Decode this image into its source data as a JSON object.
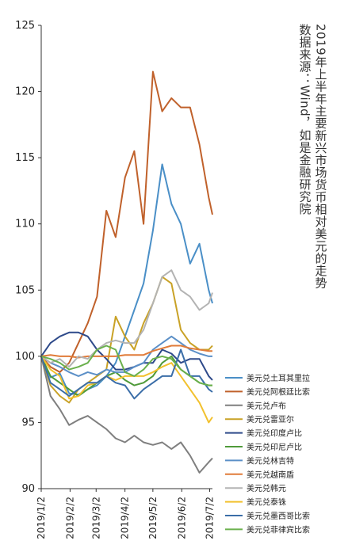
{
  "title": "2019年上半年主要新兴市场货币相对美元的走势",
  "source": "数据来源：Wind，如是金融研究院",
  "chart_data": {
    "type": "line",
    "title": "2019年上半年主要新兴市场货币相对美元的走势",
    "xlabel": "",
    "ylabel": "",
    "ylim": [
      90,
      125
    ],
    "yticks": [
      90,
      95,
      100,
      105,
      110,
      115,
      120,
      125
    ],
    "x_range": [
      "2019/1/2",
      "2019/7/5"
    ],
    "xticks": [
      "2019/1/2",
      "2019/2/2",
      "2019/3/2",
      "2019/4/2",
      "2019/5/2",
      "2019/6/2",
      "2019/7/2"
    ],
    "grid": false,
    "legend_position": "bottom-right",
    "series": [
      {
        "name": "美元兑土耳其里拉",
        "color": "#4a8fc7",
        "x": [
          "2019/1/2",
          "2019/1/12",
          "2019/1/22",
          "2019/2/1",
          "2019/2/11",
          "2019/2/21",
          "2019/3/3",
          "2019/3/13",
          "2019/3/23",
          "2019/4/2",
          "2019/4/12",
          "2019/4/22",
          "2019/5/2",
          "2019/5/12",
          "2019/5/22",
          "2019/6/1",
          "2019/6/11",
          "2019/6/21",
          "2019/7/1",
          "2019/7/5"
        ],
        "values": [
          100.0,
          98.4,
          98.7,
          97.2,
          97.1,
          97.5,
          97.8,
          98.5,
          99.5,
          101.5,
          103.5,
          105.5,
          109.5,
          114.5,
          111.5,
          110.0,
          107.0,
          108.5,
          105.0,
          104.0
        ]
      },
      {
        "name": "美元兑阿根廷比索",
        "color": "#c0612b",
        "x": [
          "2019/1/2",
          "2019/1/12",
          "2019/1/22",
          "2019/2/1",
          "2019/2/11",
          "2019/2/21",
          "2019/3/3",
          "2019/3/13",
          "2019/3/23",
          "2019/4/2",
          "2019/4/12",
          "2019/4/22",
          "2019/5/2",
          "2019/5/12",
          "2019/5/22",
          "2019/6/1",
          "2019/6/11",
          "2019/6/21",
          "2019/7/1",
          "2019/7/5"
        ],
        "values": [
          100.0,
          99.2,
          98.8,
          99.5,
          101.0,
          102.5,
          104.5,
          111.0,
          109.0,
          113.5,
          115.5,
          110.0,
          121.5,
          118.5,
          119.5,
          118.8,
          118.8,
          116.0,
          112.0,
          110.7
        ]
      },
      {
        "name": "美元兑卢布",
        "color": "#7f7f7f",
        "x": [
          "2019/1/2",
          "2019/1/12",
          "2019/1/22",
          "2019/2/1",
          "2019/2/11",
          "2019/2/21",
          "2019/3/3",
          "2019/3/13",
          "2019/3/23",
          "2019/4/2",
          "2019/4/12",
          "2019/4/22",
          "2019/5/2",
          "2019/5/12",
          "2019/5/22",
          "2019/6/1",
          "2019/6/11",
          "2019/6/21",
          "2019/7/1",
          "2019/7/5"
        ],
        "values": [
          100.0,
          97.0,
          96.0,
          94.8,
          95.2,
          95.5,
          95.0,
          94.5,
          93.8,
          93.5,
          94.0,
          93.5,
          93.3,
          93.5,
          93.0,
          93.5,
          92.5,
          91.2,
          92.0,
          92.3
        ]
      },
      {
        "name": "美元兑雷亚尔",
        "color": "#c9a227",
        "x": [
          "2019/1/2",
          "2019/1/12",
          "2019/1/22",
          "2019/2/1",
          "2019/2/11",
          "2019/2/21",
          "2019/3/3",
          "2019/3/13",
          "2019/3/23",
          "2019/4/2",
          "2019/4/12",
          "2019/4/22",
          "2019/5/2",
          "2019/5/12",
          "2019/5/22",
          "2019/6/1",
          "2019/6/11",
          "2019/6/21",
          "2019/7/1",
          "2019/7/5"
        ],
        "values": [
          100.0,
          97.8,
          97.0,
          96.5,
          97.5,
          98.0,
          98.5,
          99.0,
          103.0,
          101.5,
          100.5,
          102.5,
          104.0,
          106.0,
          105.5,
          102.0,
          101.0,
          100.5,
          100.5,
          100.8
        ]
      },
      {
        "name": "美元兑印度卢比",
        "color": "#2e4a8a",
        "x": [
          "2019/1/2",
          "2019/1/12",
          "2019/1/22",
          "2019/2/1",
          "2019/2/11",
          "2019/2/21",
          "2019/3/3",
          "2019/3/13",
          "2019/3/23",
          "2019/4/2",
          "2019/4/12",
          "2019/4/22",
          "2019/5/2",
          "2019/5/12",
          "2019/5/22",
          "2019/6/1",
          "2019/6/11",
          "2019/6/21",
          "2019/7/1",
          "2019/7/5"
        ],
        "values": [
          100.0,
          101.0,
          101.5,
          101.8,
          101.8,
          101.5,
          100.5,
          99.8,
          99.0,
          99.0,
          99.2,
          99.5,
          99.5,
          100.5,
          100.2,
          99.5,
          99.8,
          99.8,
          98.5,
          98.2
        ]
      },
      {
        "name": "美元兑印尼卢比",
        "color": "#4f9a3a",
        "x": [
          "2019/1/2",
          "2019/1/12",
          "2019/1/22",
          "2019/2/1",
          "2019/2/11",
          "2019/2/21",
          "2019/3/3",
          "2019/3/13",
          "2019/3/23",
          "2019/4/2",
          "2019/4/12",
          "2019/4/22",
          "2019/5/2",
          "2019/5/12",
          "2019/5/22",
          "2019/6/1",
          "2019/6/11",
          "2019/6/21",
          "2019/7/1",
          "2019/7/5"
        ],
        "values": [
          100.0,
          98.5,
          98.0,
          97.5,
          97.0,
          97.5,
          98.0,
          98.5,
          98.8,
          98.2,
          97.8,
          98.0,
          98.5,
          99.5,
          100.0,
          99.0,
          98.5,
          98.0,
          97.8,
          97.8
        ]
      },
      {
        "name": "美元兑林吉特",
        "color": "#5b8fc7",
        "x": [
          "2019/1/2",
          "2019/1/12",
          "2019/1/22",
          "2019/2/1",
          "2019/2/11",
          "2019/2/21",
          "2019/3/3",
          "2019/3/13",
          "2019/3/23",
          "2019/4/2",
          "2019/4/12",
          "2019/4/22",
          "2019/5/2",
          "2019/5/12",
          "2019/5/22",
          "2019/6/1",
          "2019/6/11",
          "2019/6/21",
          "2019/7/1",
          "2019/7/5"
        ],
        "values": [
          100.0,
          99.5,
          99.2,
          98.8,
          98.5,
          98.8,
          98.6,
          99.0,
          98.8,
          98.8,
          99.2,
          99.5,
          100.5,
          101.0,
          101.5,
          101.0,
          100.5,
          100.2,
          100.0,
          100.0
        ]
      },
      {
        "name": "美元兑越南盾",
        "color": "#e07b39",
        "x": [
          "2019/1/2",
          "2019/1/12",
          "2019/1/22",
          "2019/2/1",
          "2019/2/11",
          "2019/2/21",
          "2019/3/3",
          "2019/3/13",
          "2019/3/23",
          "2019/4/2",
          "2019/4/12",
          "2019/4/22",
          "2019/5/2",
          "2019/5/12",
          "2019/5/22",
          "2019/6/1",
          "2019/6/11",
          "2019/6/21",
          "2019/7/1",
          "2019/7/5"
        ],
        "values": [
          100.0,
          100.1,
          100.0,
          100.0,
          99.9,
          100.0,
          100.0,
          100.0,
          100.0,
          100.1,
          100.1,
          100.1,
          100.4,
          100.6,
          100.8,
          100.8,
          100.6,
          100.5,
          100.4,
          100.4
        ]
      },
      {
        "name": "美元兑韩元",
        "color": "#b3b3b3",
        "x": [
          "2019/1/2",
          "2019/1/12",
          "2019/1/22",
          "2019/2/1",
          "2019/2/11",
          "2019/2/21",
          "2019/3/3",
          "2019/3/13",
          "2019/3/23",
          "2019/4/2",
          "2019/4/12",
          "2019/4/22",
          "2019/5/2",
          "2019/5/12",
          "2019/5/22",
          "2019/6/1",
          "2019/6/11",
          "2019/6/21",
          "2019/7/1",
          "2019/7/5"
        ],
        "values": [
          100.0,
          99.5,
          99.8,
          99.2,
          100.0,
          99.8,
          100.5,
          101.0,
          101.2,
          101.0,
          101.0,
          102.0,
          104.0,
          106.0,
          106.5,
          105.0,
          104.5,
          103.5,
          104.0,
          104.8
        ]
      },
      {
        "name": "美元兑泰铢",
        "color": "#f2c12e",
        "x": [
          "2019/1/2",
          "2019/1/12",
          "2019/1/22",
          "2019/2/1",
          "2019/2/11",
          "2019/2/21",
          "2019/3/3",
          "2019/3/13",
          "2019/3/23",
          "2019/4/2",
          "2019/4/12",
          "2019/4/22",
          "2019/5/2",
          "2019/5/12",
          "2019/5/22",
          "2019/6/1",
          "2019/6/11",
          "2019/6/21",
          "2019/7/1",
          "2019/7/5"
        ],
        "values": [
          100.0,
          99.0,
          98.5,
          96.8,
          97.0,
          97.8,
          98.0,
          98.5,
          98.2,
          98.5,
          98.5,
          98.5,
          98.8,
          99.2,
          99.5,
          98.5,
          97.5,
          96.5,
          95.0,
          95.4
        ]
      },
      {
        "name": "美元兑墨西哥比索",
        "color": "#3b6ea8",
        "x": [
          "2019/1/2",
          "2019/1/12",
          "2019/1/22",
          "2019/2/1",
          "2019/2/11",
          "2019/2/21",
          "2019/3/3",
          "2019/3/13",
          "2019/3/23",
          "2019/4/2",
          "2019/4/12",
          "2019/4/22",
          "2019/5/2",
          "2019/5/12",
          "2019/5/22",
          "2019/6/1",
          "2019/6/11",
          "2019/6/21",
          "2019/7/1",
          "2019/7/5"
        ],
        "values": [
          100.0,
          98.0,
          97.5,
          97.0,
          97.5,
          98.0,
          98.0,
          98.5,
          98.0,
          97.8,
          96.8,
          97.5,
          98.0,
          98.5,
          98.5,
          100.5,
          98.5,
          98.5,
          97.5,
          97.3
        ]
      },
      {
        "name": "美元兑菲律宾比索",
        "color": "#6ab04c",
        "x": [
          "2019/1/2",
          "2019/1/12",
          "2019/1/22",
          "2019/2/1",
          "2019/2/11",
          "2019/2/21",
          "2019/3/3",
          "2019/3/13",
          "2019/3/23",
          "2019/4/2",
          "2019/4/12",
          "2019/4/22",
          "2019/5/2",
          "2019/5/12",
          "2019/5/22",
          "2019/6/1",
          "2019/6/11",
          "2019/6/21",
          "2019/7/1",
          "2019/7/5"
        ],
        "values": [
          100.0,
          99.8,
          99.5,
          99.0,
          99.2,
          99.5,
          100.5,
          100.8,
          100.5,
          98.8,
          98.5,
          99.0,
          99.8,
          100.0,
          99.8,
          99.0,
          98.5,
          98.0,
          97.8,
          97.8
        ]
      }
    ]
  }
}
